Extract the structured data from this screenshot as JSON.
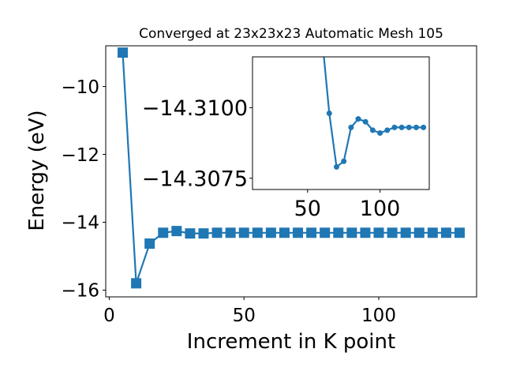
{
  "chart_data": [
    {
      "type": "line",
      "title": "Converged at 23x23x23 Automatic Mesh 105",
      "xlabel": "Increment in K point",
      "ylabel": "Energy (eV)",
      "xlim": [
        -1.3,
        136.3
      ],
      "ylim": [
        -16.2,
        -8.8
      ],
      "xticks": [
        0,
        50,
        100
      ],
      "xtick_labels": [
        "0",
        "50",
        "100"
      ],
      "yticks": [
        -16,
        -14,
        -12,
        -10
      ],
      "ytick_labels": [
        "−16",
        "−14",
        "−12",
        "−10"
      ],
      "marker": "square",
      "color": "#1f77b4",
      "grid": false,
      "series": [
        {
          "x": [
            5,
            10,
            15,
            20,
            25,
            30,
            35,
            40,
            45,
            50,
            55,
            60,
            65,
            70,
            75,
            80,
            85,
            90,
            95,
            100,
            105,
            110,
            115,
            120,
            125,
            130
          ],
          "y": [
            -9.0,
            -15.8,
            -14.63,
            -14.31,
            -14.26,
            -14.33,
            -14.33,
            -14.31,
            -14.31,
            -14.31,
            -14.31,
            -14.31,
            -14.31,
            -14.31,
            -14.31,
            -14.31,
            -14.31,
            -14.31,
            -14.31,
            -14.31,
            -14.31,
            -14.31,
            -14.31,
            -14.31,
            -14.31,
            -14.31
          ]
        }
      ]
    },
    {
      "type": "line",
      "title": "",
      "xlabel": "",
      "ylabel": "",
      "xlim": [
        12,
        134
      ],
      "ylim": [
        -14.3071,
        -14.3118
      ],
      "y_inverted": true,
      "xticks": [
        50,
        100
      ],
      "xtick_labels": [
        "50",
        "100"
      ],
      "yticks": [
        -14.31,
        -14.3075
      ],
      "ytick_labels": [
        "−14.3100",
        "−14.3075"
      ],
      "marker": "circle",
      "color": "#1f77b4",
      "grid": false,
      "series": [
        {
          "x": [
            60,
            65,
            70,
            75,
            80,
            85,
            90,
            95,
            100,
            105,
            110,
            115,
            120,
            125,
            130
          ],
          "y": [
            -14.3125,
            -14.3098,
            -14.3079,
            -14.3081,
            -14.3093,
            -14.3096,
            -14.3095,
            -14.3092,
            -14.3091,
            -14.3092,
            -14.3093,
            -14.3093,
            -14.3093,
            -14.3093,
            -14.3093
          ]
        }
      ]
    }
  ]
}
